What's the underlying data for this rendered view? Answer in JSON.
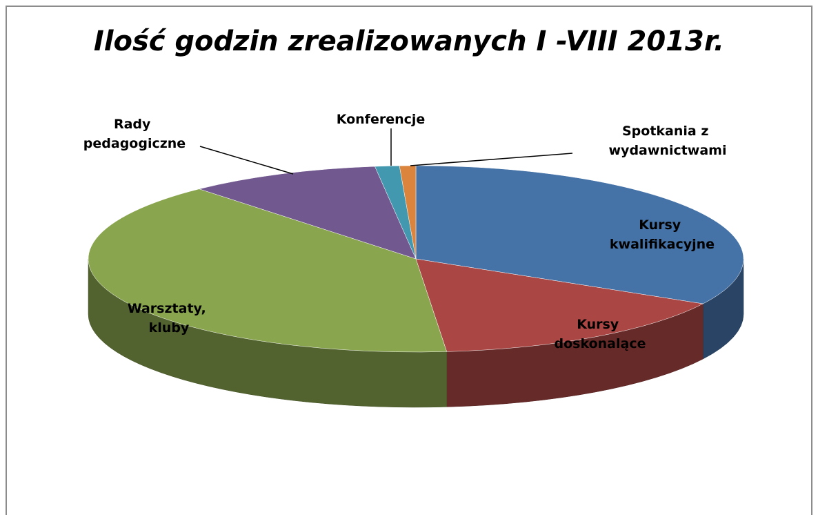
{
  "chart_data": {
    "type": "pie3d",
    "title": "Ilość godzin  zrealizowanych I -VIII 2013r.",
    "categories": [
      "Kursy kwalifikacyjne",
      "Kursy doskonalące",
      "Warsztaty, kluby",
      "Rady pedagogiczne",
      "Konferencje",
      "Spotkania z wydawnictwami"
    ],
    "values": [
      33,
      15.5,
      40,
      9.5,
      1.2,
      0.8
    ],
    "colors": [
      "#4572a7",
      "#aa4643",
      "#89a54e",
      "#71588f",
      "#4198af",
      "#db843d"
    ]
  }
}
